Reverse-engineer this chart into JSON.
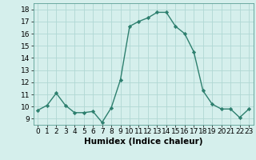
{
  "x": [
    0,
    1,
    2,
    3,
    4,
    5,
    6,
    7,
    8,
    9,
    10,
    11,
    12,
    13,
    14,
    15,
    16,
    17,
    18,
    19,
    20,
    21,
    22,
    23
  ],
  "y": [
    9.7,
    10.1,
    11.1,
    10.1,
    9.5,
    9.5,
    9.6,
    8.7,
    9.9,
    12.2,
    16.6,
    17.0,
    17.3,
    17.75,
    17.75,
    16.6,
    16.0,
    14.5,
    11.3,
    10.2,
    9.8,
    9.8,
    9.1,
    9.8
  ],
  "line_color": "#2d7f6e",
  "marker": "D",
  "markersize": 2.2,
  "linewidth": 1.0,
  "bg_color": "#d5efec",
  "grid_color": "#b0d8d4",
  "xlabel": "Humidex (Indice chaleur)",
  "xlim": [
    -0.5,
    23.5
  ],
  "ylim": [
    8.5,
    18.5
  ],
  "xticks": [
    0,
    1,
    2,
    3,
    4,
    5,
    6,
    7,
    8,
    9,
    10,
    11,
    12,
    13,
    14,
    15,
    16,
    17,
    18,
    19,
    20,
    21,
    22,
    23
  ],
  "yticks": [
    9,
    10,
    11,
    12,
    13,
    14,
    15,
    16,
    17,
    18
  ],
  "tick_fontsize": 6.5,
  "xlabel_fontsize": 7.5
}
